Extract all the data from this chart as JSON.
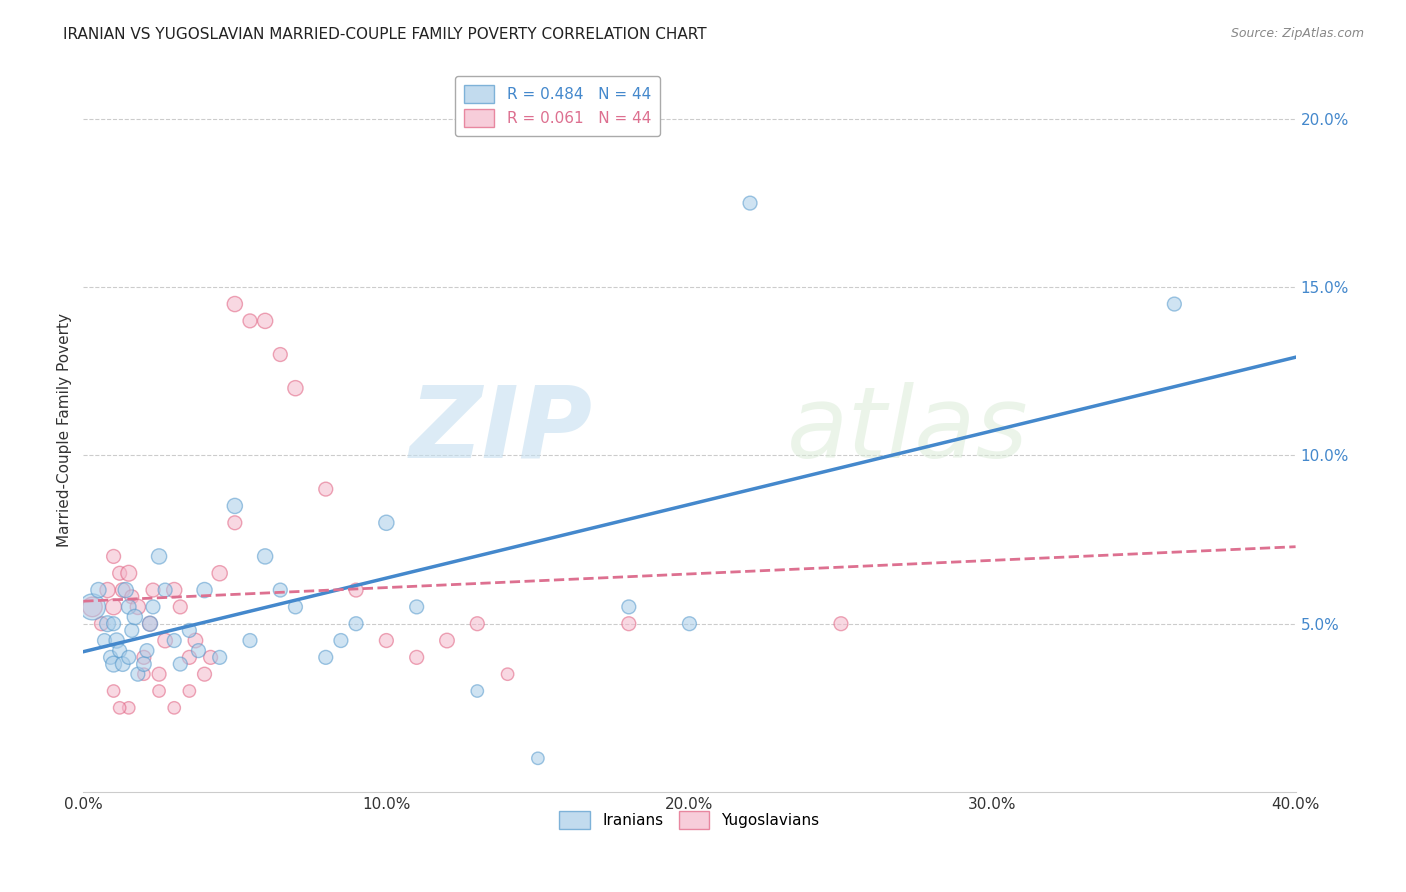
{
  "title": "IRANIAN VS YUGOSLAVIAN MARRIED-COUPLE FAMILY POVERTY CORRELATION CHART",
  "source": "Source: ZipAtlas.com",
  "ylabel": "Married-Couple Family Poverty",
  "watermark_zip": "ZIP",
  "watermark_atlas": "atlas",
  "xlim": [
    0.0,
    0.4
  ],
  "ylim": [
    0.0,
    0.215
  ],
  "xticks": [
    0.0,
    0.1,
    0.2,
    0.3,
    0.4
  ],
  "xtick_labels": [
    "0.0%",
    "10.0%",
    "20.0%",
    "30.0%",
    "40.0%"
  ],
  "yticks": [
    0.05,
    0.1,
    0.15,
    0.2
  ],
  "ytick_labels": [
    "5.0%",
    "10.0%",
    "15.0%",
    "20.0%"
  ],
  "iranian_color": "#a8cce8",
  "yugoslav_color": "#f4b8cb",
  "iranian_edge_color": "#5599cc",
  "yugoslav_edge_color": "#e06080",
  "iranian_line_color": "#4488cc",
  "yugoslav_line_color": "#dd7090",
  "background_color": "#ffffff",
  "grid_color": "#cccccc",
  "legend_R1": "0.484",
  "legend_N1": "44",
  "legend_R2": "0.061",
  "legend_N2": "44",
  "legend_label1": "Iranians",
  "legend_label2": "Yugoslavians",
  "iranians_x": [
    0.003,
    0.005,
    0.007,
    0.008,
    0.009,
    0.01,
    0.01,
    0.011,
    0.012,
    0.013,
    0.014,
    0.015,
    0.015,
    0.016,
    0.017,
    0.018,
    0.02,
    0.021,
    0.022,
    0.023,
    0.025,
    0.027,
    0.03,
    0.032,
    0.035,
    0.038,
    0.04,
    0.045,
    0.05,
    0.055,
    0.06,
    0.065,
    0.07,
    0.08,
    0.085,
    0.09,
    0.1,
    0.11,
    0.13,
    0.15,
    0.18,
    0.2,
    0.22,
    0.36
  ],
  "iranians_y": [
    0.055,
    0.06,
    0.045,
    0.05,
    0.04,
    0.038,
    0.05,
    0.045,
    0.042,
    0.038,
    0.06,
    0.04,
    0.055,
    0.048,
    0.052,
    0.035,
    0.038,
    0.042,
    0.05,
    0.055,
    0.07,
    0.06,
    0.045,
    0.038,
    0.048,
    0.042,
    0.06,
    0.04,
    0.085,
    0.045,
    0.07,
    0.06,
    0.055,
    0.04,
    0.045,
    0.05,
    0.08,
    0.055,
    0.03,
    0.01,
    0.055,
    0.05,
    0.175,
    0.145
  ],
  "yugoslavians_x": [
    0.003,
    0.006,
    0.008,
    0.01,
    0.01,
    0.012,
    0.013,
    0.015,
    0.016,
    0.018,
    0.02,
    0.022,
    0.023,
    0.025,
    0.027,
    0.03,
    0.032,
    0.035,
    0.037,
    0.04,
    0.042,
    0.045,
    0.05,
    0.055,
    0.06,
    0.065,
    0.07,
    0.08,
    0.09,
    0.1,
    0.11,
    0.12,
    0.13,
    0.14,
    0.05,
    0.035,
    0.03,
    0.025,
    0.02,
    0.015,
    0.01,
    0.012,
    0.25,
    0.18
  ],
  "yugoslavians_y": [
    0.055,
    0.05,
    0.06,
    0.055,
    0.07,
    0.065,
    0.06,
    0.065,
    0.058,
    0.055,
    0.04,
    0.05,
    0.06,
    0.035,
    0.045,
    0.06,
    0.055,
    0.04,
    0.045,
    0.035,
    0.04,
    0.065,
    0.145,
    0.14,
    0.14,
    0.13,
    0.12,
    0.09,
    0.06,
    0.045,
    0.04,
    0.045,
    0.05,
    0.035,
    0.08,
    0.03,
    0.025,
    0.03,
    0.035,
    0.025,
    0.03,
    0.025,
    0.05,
    0.05
  ],
  "iranian_sizes": [
    350,
    120,
    100,
    130,
    100,
    130,
    100,
    120,
    100,
    110,
    120,
    100,
    110,
    100,
    120,
    100,
    110,
    100,
    120,
    100,
    120,
    100,
    100,
    100,
    100,
    100,
    120,
    100,
    120,
    100,
    120,
    100,
    100,
    100,
    100,
    100,
    120,
    100,
    80,
    80,
    100,
    100,
    100,
    100
  ],
  "yugoslav_sizes": [
    200,
    100,
    120,
    130,
    100,
    100,
    110,
    130,
    100,
    120,
    100,
    110,
    100,
    100,
    110,
    120,
    100,
    100,
    110,
    100,
    100,
    120,
    120,
    100,
    120,
    100,
    120,
    100,
    100,
    100,
    100,
    110,
    100,
    80,
    100,
    80,
    80,
    80,
    80,
    80,
    80,
    80,
    100,
    100
  ]
}
